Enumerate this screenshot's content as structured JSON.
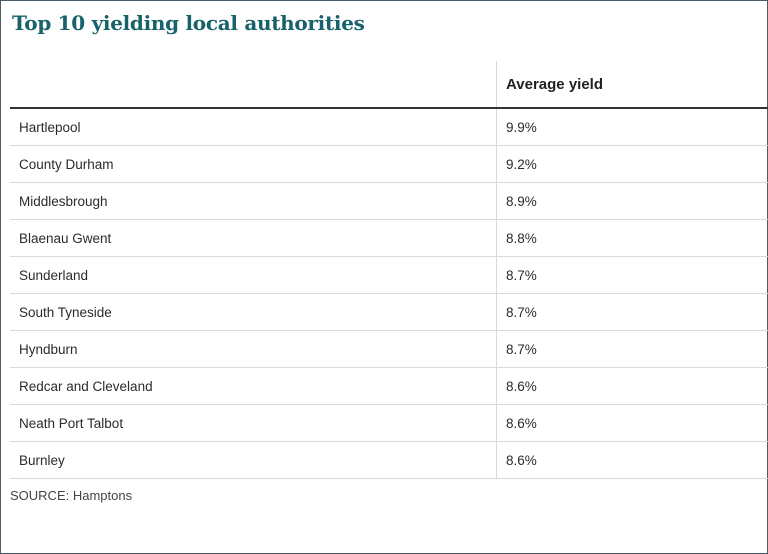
{
  "title": "Top 10 yielding local authorities",
  "source": "SOURCE: Hamptons",
  "chart_data": {
    "type": "table",
    "columns": [
      "",
      "Average yield"
    ],
    "rows": [
      {
        "name": "Hartlepool",
        "value": "9.9%"
      },
      {
        "name": "County Durham",
        "value": "9.2%"
      },
      {
        "name": "Middlesbrough",
        "value": "8.9%"
      },
      {
        "name": "Blaenau Gwent",
        "value": "8.8%"
      },
      {
        "name": "Sunderland",
        "value": "8.7%"
      },
      {
        "name": "South Tyneside",
        "value": "8.7%"
      },
      {
        "name": "Hyndburn",
        "value": "8.7%"
      },
      {
        "name": "Redcar and Cleveland",
        "value": "8.6%"
      },
      {
        "name": "Neath Port Talbot",
        "value": "8.6%"
      },
      {
        "name": "Burnley",
        "value": "8.6%"
      }
    ]
  }
}
